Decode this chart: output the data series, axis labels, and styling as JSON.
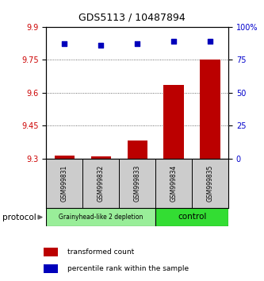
{
  "title": "GDS5113 / 10487894",
  "samples": [
    "GSM999831",
    "GSM999832",
    "GSM999833",
    "GSM999834",
    "GSM999835"
  ],
  "bar_values": [
    9.315,
    9.312,
    9.382,
    9.635,
    9.752
  ],
  "bar_base": 9.3,
  "percentile_values": [
    87,
    86,
    87,
    89,
    89
  ],
  "ylim_left": [
    9.3,
    9.9
  ],
  "ylim_right": [
    0,
    100
  ],
  "yticks_left": [
    9.3,
    9.45,
    9.6,
    9.75,
    9.9
  ],
  "ytick_labels_left": [
    "9.3",
    "9.45",
    "9.6",
    "9.75",
    "9.9"
  ],
  "yticks_right": [
    0,
    25,
    50,
    75,
    100
  ],
  "ytick_labels_right": [
    "0",
    "25",
    "50",
    "75",
    "100%"
  ],
  "bar_color": "#bb0000",
  "dot_color": "#0000bb",
  "group1_label": "Grainyhead-like 2 depletion",
  "group2_label": "control",
  "group1_color": "#99ee99",
  "group2_color": "#33dd33",
  "group1_indices": [
    0,
    1,
    2
  ],
  "group2_indices": [
    3,
    4
  ],
  "protocol_label": "protocol",
  "legend_bar_label": "transformed count",
  "legend_dot_label": "percentile rank within the sample",
  "grid_color": "#444444",
  "background_color": "#ffffff",
  "tick_label_color_left": "#cc0000",
  "tick_label_color_right": "#0000cc",
  "sample_box_color": "#cccccc",
  "title_fontsize": 9
}
